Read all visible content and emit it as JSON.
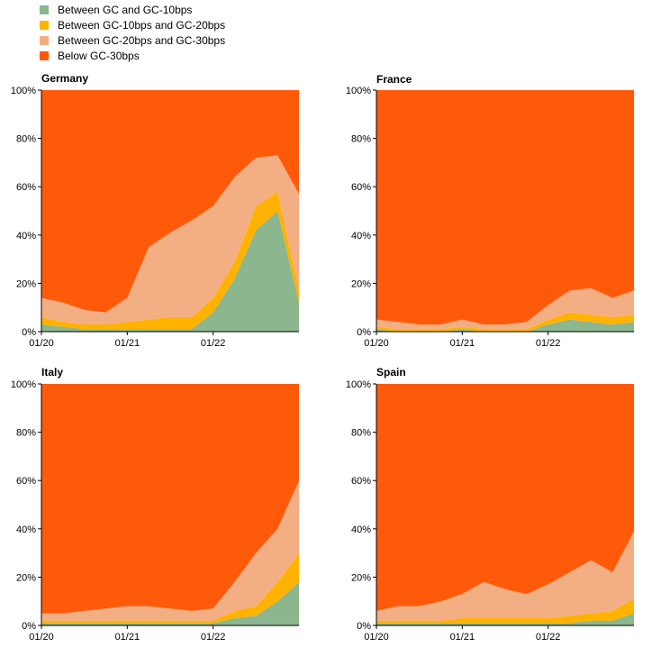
{
  "legend": {
    "placement": "top-left",
    "items": [
      {
        "label": "Between GC and GC-10bps",
        "color": "#8cb68e"
      },
      {
        "label": "Between GC-10bps and GC-20bps",
        "color": "#ffb300"
      },
      {
        "label": "Between GC-20bps and GC-30bps",
        "color": "#f4ae84"
      },
      {
        "label": "Below GC-30bps",
        "color": "#ff5a0a"
      }
    ]
  },
  "chart_data": [
    {
      "type": "area",
      "title": "Germany",
      "x_tick_labels": [
        "01/20",
        "01/21",
        "01/22"
      ],
      "y_tick_labels": [
        "0%",
        "20%",
        "40%",
        "60%",
        "80%",
        "100%"
      ],
      "ylim": [
        0,
        100
      ],
      "stacked": true,
      "x": [
        "01/20",
        "04/20",
        "07/20",
        "10/20",
        "01/21",
        "04/21",
        "07/21",
        "10/21",
        "01/22",
        "04/22",
        "07/22",
        "10/22",
        "12/22"
      ],
      "series": [
        {
          "values": [
            3,
            2,
            1,
            1,
            1,
            1,
            1,
            1,
            8,
            22,
            42,
            50,
            12
          ]
        },
        {
          "values": [
            3,
            2,
            2,
            2,
            3,
            4,
            5,
            5,
            6,
            7,
            10,
            8,
            5
          ]
        },
        {
          "values": [
            8,
            8,
            6,
            5,
            10,
            30,
            35,
            40,
            38,
            35,
            20,
            15,
            40
          ]
        },
        {
          "values": [
            86,
            88,
            91,
            92,
            86,
            65,
            59,
            54,
            48,
            36,
            28,
            27,
            43
          ]
        }
      ]
    },
    {
      "type": "area",
      "title": "France",
      "x_tick_labels": [
        "01/20",
        "01/21",
        "01/22"
      ],
      "y_tick_labels": [
        "0%",
        "20%",
        "40%",
        "60%",
        "80%",
        "100%"
      ],
      "ylim": [
        0,
        100
      ],
      "stacked": true,
      "x": [
        "01/20",
        "04/20",
        "07/20",
        "10/20",
        "01/21",
        "04/21",
        "07/21",
        "10/21",
        "01/22",
        "04/22",
        "07/22",
        "10/22",
        "12/22"
      ],
      "series": [
        {
          "values": [
            1,
            0,
            0,
            0,
            1,
            0,
            0,
            0,
            3,
            5,
            4,
            3,
            4
          ]
        },
        {
          "values": [
            1,
            1,
            1,
            1,
            1,
            1,
            1,
            1,
            2,
            3,
            3,
            3,
            3
          ]
        },
        {
          "values": [
            3,
            3,
            2,
            2,
            3,
            2,
            2,
            3,
            6,
            9,
            11,
            8,
            10
          ]
        },
        {
          "values": [
            95,
            96,
            97,
            97,
            95,
            97,
            97,
            96,
            89,
            83,
            82,
            86,
            83
          ]
        }
      ]
    },
    {
      "type": "area",
      "title": "Italy",
      "x_tick_labels": [
        "01/20",
        "01/21",
        "01/22"
      ],
      "y_tick_labels": [
        "0%",
        "20%",
        "40%",
        "60%",
        "80%",
        "100%"
      ],
      "ylim": [
        0,
        100
      ],
      "stacked": true,
      "x": [
        "01/20",
        "04/20",
        "07/20",
        "10/20",
        "01/21",
        "04/21",
        "07/21",
        "10/21",
        "01/22",
        "04/22",
        "07/22",
        "10/22",
        "12/22"
      ],
      "series": [
        {
          "values": [
            1,
            1,
            1,
            1,
            1,
            1,
            1,
            1,
            1,
            3,
            4,
            10,
            18
          ]
        },
        {
          "values": [
            1,
            1,
            1,
            1,
            1,
            1,
            1,
            1,
            1,
            3,
            4,
            8,
            12
          ]
        },
        {
          "values": [
            3,
            3,
            4,
            5,
            6,
            6,
            5,
            4,
            5,
            12,
            22,
            22,
            30
          ]
        },
        {
          "values": [
            95,
            95,
            94,
            93,
            92,
            92,
            93,
            94,
            93,
            82,
            70,
            60,
            40
          ]
        }
      ]
    },
    {
      "type": "area",
      "title": "Spain",
      "x_tick_labels": [
        "01/20",
        "01/21",
        "01/22"
      ],
      "y_tick_labels": [
        "0%",
        "20%",
        "40%",
        "60%",
        "80%",
        "100%"
      ],
      "ylim": [
        0,
        100
      ],
      "stacked": true,
      "x": [
        "01/20",
        "04/20",
        "07/20",
        "10/20",
        "01/21",
        "04/21",
        "07/21",
        "10/21",
        "01/22",
        "04/22",
        "07/22",
        "10/22",
        "12/22"
      ],
      "series": [
        {
          "values": [
            1,
            1,
            1,
            1,
            1,
            1,
            1,
            1,
            1,
            1,
            2,
            2,
            5
          ]
        },
        {
          "values": [
            1,
            1,
            1,
            1,
            2,
            2,
            2,
            2,
            2,
            3,
            3,
            4,
            6
          ]
        },
        {
          "values": [
            4,
            6,
            6,
            8,
            10,
            15,
            12,
            10,
            14,
            18,
            22,
            16,
            28
          ]
        },
        {
          "values": [
            94,
            92,
            92,
            90,
            87,
            82,
            85,
            87,
            83,
            78,
            73,
            78,
            61
          ]
        }
      ]
    }
  ]
}
